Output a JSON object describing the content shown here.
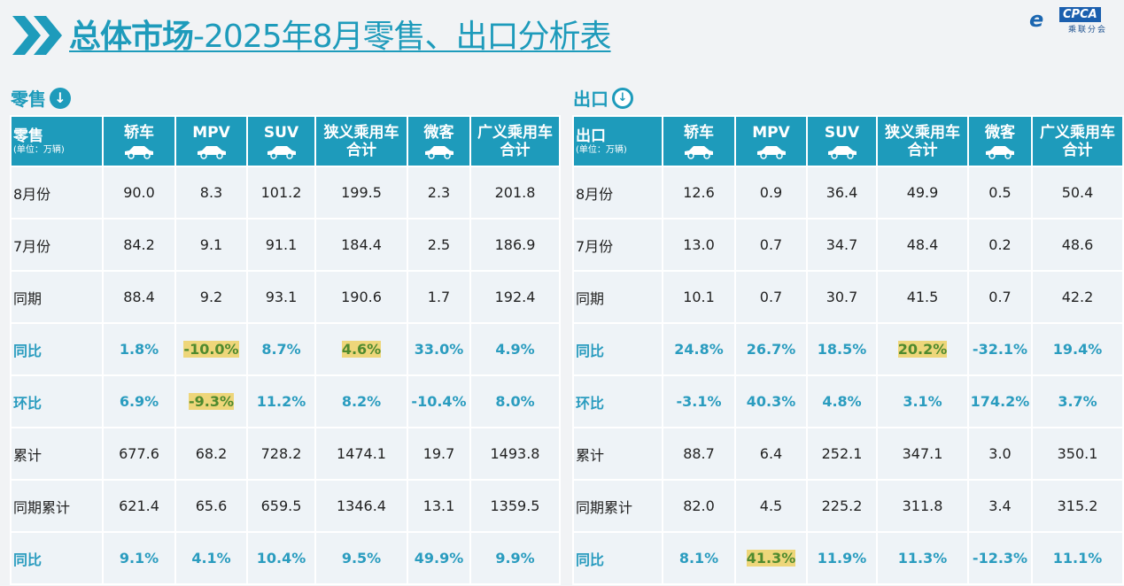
{
  "header": {
    "title_bold": "总体市场",
    "title_rest": "-2025年8月零售、出口分析表",
    "logo_text": "CPCA",
    "logo_sub": "乘联分会"
  },
  "tables": [
    {
      "section": "零售",
      "corner": "零售",
      "unit": "(单位：万辆)",
      "columns": [
        "轿车",
        "MPV",
        "SUV",
        "狭义乘用车合计",
        "微客",
        "广义乘用车合计"
      ],
      "rows": [
        {
          "label": "8月份",
          "pct": false,
          "values": [
            "90.0",
            "8.3",
            "101.2",
            "199.5",
            "2.3",
            "201.8"
          ],
          "hl": []
        },
        {
          "label": "7月份",
          "pct": false,
          "values": [
            "84.2",
            "9.1",
            "91.1",
            "184.4",
            "2.5",
            "186.9"
          ],
          "hl": []
        },
        {
          "label": "同期",
          "pct": false,
          "values": [
            "88.4",
            "9.2",
            "93.1",
            "190.6",
            "1.7",
            "192.4"
          ],
          "hl": []
        },
        {
          "label": "同比",
          "pct": true,
          "values": [
            "1.8%",
            "-10.0%",
            "8.7%",
            "4.6%",
            "33.0%",
            "4.9%"
          ],
          "hl": [
            1,
            3
          ]
        },
        {
          "label": "环比",
          "pct": true,
          "values": [
            "6.9%",
            "-9.3%",
            "11.2%",
            "8.2%",
            "-10.4%",
            "8.0%"
          ],
          "hl": [
            1
          ]
        },
        {
          "label": "累计",
          "pct": false,
          "values": [
            "677.6",
            "68.2",
            "728.2",
            "1474.1",
            "19.7",
            "1493.8"
          ],
          "hl": []
        },
        {
          "label": "同期累计",
          "pct": false,
          "values": [
            "621.4",
            "65.6",
            "659.5",
            "1346.4",
            "13.1",
            "1359.5"
          ],
          "hl": []
        },
        {
          "label": "同比",
          "pct": true,
          "values": [
            "9.1%",
            "4.1%",
            "10.4%",
            "9.5%",
            "49.9%",
            "9.9%"
          ],
          "hl": []
        }
      ]
    },
    {
      "section": "出口",
      "corner": "出口",
      "unit": "(单位：万辆)",
      "columns": [
        "轿车",
        "MPV",
        "SUV",
        "狭义乘用车合计",
        "微客",
        "广义乘用车合计"
      ],
      "rows": [
        {
          "label": "8月份",
          "pct": false,
          "values": [
            "12.6",
            "0.9",
            "36.4",
            "49.9",
            "0.5",
            "50.4"
          ],
          "hl": []
        },
        {
          "label": "7月份",
          "pct": false,
          "values": [
            "13.0",
            "0.7",
            "34.7",
            "48.4",
            "0.2",
            "48.6"
          ],
          "hl": []
        },
        {
          "label": "同期",
          "pct": false,
          "values": [
            "10.1",
            "0.7",
            "30.7",
            "41.5",
            "0.7",
            "42.2"
          ],
          "hl": []
        },
        {
          "label": "同比",
          "pct": true,
          "values": [
            "24.8%",
            "26.7%",
            "18.5%",
            "20.2%",
            "-32.1%",
            "19.4%"
          ],
          "hl": [
            3
          ]
        },
        {
          "label": "环比",
          "pct": true,
          "values": [
            "-3.1%",
            "40.3%",
            "4.8%",
            "3.1%",
            "174.2%",
            "3.7%"
          ],
          "hl": []
        },
        {
          "label": "累计",
          "pct": false,
          "values": [
            "88.7",
            "6.4",
            "252.1",
            "347.1",
            "3.0",
            "350.1"
          ],
          "hl": []
        },
        {
          "label": "同期累计",
          "pct": false,
          "values": [
            "82.0",
            "4.5",
            "225.2",
            "311.8",
            "3.4",
            "315.2"
          ],
          "hl": []
        },
        {
          "label": "同比",
          "pct": true,
          "values": [
            "8.1%",
            "41.3%",
            "11.9%",
            "11.3%",
            "-12.3%",
            "11.1%"
          ],
          "hl": [
            1
          ]
        }
      ]
    }
  ]
}
